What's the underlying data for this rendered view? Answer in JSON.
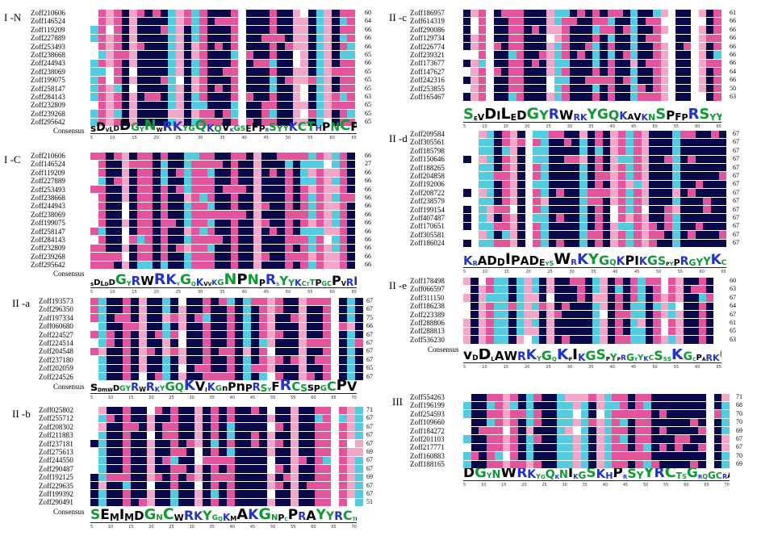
{
  "colors": {
    "identical": "#0a0a4a",
    "high": "#e2559a",
    "medium": "#55cbe0",
    "low": "#f2a7c9",
    "logo_blue": "#2233cc",
    "logo_green": "#119933",
    "logo_black": "#000000"
  },
  "consensus_label": "Consensus",
  "blocks": [
    {
      "id": "I-N",
      "label": "I -N",
      "seqs": [
        "Zoff210606",
        "Zoff146524",
        "Zoff119209",
        "Zoff227889",
        "Zoff253493",
        "Zoff238668",
        "Zoff244943",
        "Zoff238069",
        "Zoff199075",
        "Zoff258147",
        "Zoff284143",
        "Zoff232809",
        "Zoff239268",
        "Zoff295642"
      ],
      "lengths": [
        "60",
        "64",
        "66",
        "66",
        "66",
        "65",
        "66",
        "65",
        "65",
        "65",
        "63",
        "65",
        "65",
        "65"
      ],
      "logo_text": "sDVLDDGYNWRKYGQKQVKGSEFPRSYYKCTHPNCPVKKKVERSLDGQITEIVYKG HNHPKP",
      "ticks": [
        "5",
        "10",
        "15",
        "20",
        "25",
        "30",
        "35",
        "40",
        "45",
        "50",
        "55",
        "60",
        "65"
      ]
    },
    {
      "id": "I-C",
      "label": "I -C",
      "seqs": [
        "Zoff210606",
        "Zoff146524",
        "Zoff119209",
        "Zoff227889",
        "Zoff253493",
        "Zoff238668",
        "Zoff244943",
        "Zoff238069",
        "Zoff199075",
        "Zoff258147",
        "Zoff284143",
        "Zoff232809",
        "Zoff239268",
        "Zoff295642"
      ],
      "lengths": [
        "66",
        "27",
        "66",
        "66",
        "66",
        "66",
        "66",
        "66",
        "66",
        "66",
        "66",
        "66",
        "66",
        "66"
      ],
      "logo_text": "sDLDDGYRWRKYGQKVVKGNPNPRSYYKCTTPGCPVRKHVERASHDPKSVITTYEGKHNHDVP",
      "ticks": [
        "5",
        "10",
        "15",
        "20",
        "25",
        "30",
        "35",
        "40",
        "45",
        "50",
        "55",
        "60",
        "65"
      ]
    },
    {
      "id": "II-a",
      "label": "II -a",
      "seqs": [
        "Zoff193573",
        "Zoff296350",
        "Zoff197334",
        "Zoff060680",
        "Zoff224527",
        "Zoff224514",
        "Zoff204548",
        "Zoff237180",
        "Zoff202059",
        "Zoff224526"
      ],
      "lengths": [
        "67",
        "67",
        "75",
        "66",
        "67",
        "67",
        "67",
        "67",
        "65",
        "67"
      ],
      "logo_text": "sDmWDGYRWRKYGQKVIKGnPnPRSYFRCSsPGCPVKKKVQRSaeDPSVVVTTYEGEHNHPKP",
      "ticks": [
        "5",
        "10",
        "15",
        "20",
        "25",
        "30",
        "35",
        "40",
        "45",
        "50",
        "55",
        "60",
        "65",
        "70"
      ]
    },
    {
      "id": "II-b",
      "label": "II -b",
      "seqs": [
        "Zoff025802",
        "Zoff255712",
        "Zoff208302",
        "Zoff211883",
        "Zoff237181",
        "Zoff275613",
        "Zoff244550",
        "Zoff290487",
        "Zoff192125",
        "Zoff229635",
        "Zoff199392",
        "Zoff290491"
      ],
      "lengths": [
        "71",
        "67",
        "67",
        "67",
        "67",
        "69",
        "67",
        "67",
        "69",
        "67",
        "67",
        "51"
      ],
      "logo_text": "SEMIMDGNCWRKYGQKMAKGNPCPRAYYRCTMAGCPVRKQVQRCAEDRSVLITTYEGTHNHPLP",
      "ticks": [
        "5",
        "10",
        "15",
        "20",
        "25",
        "30",
        "35",
        "40",
        "45",
        "50",
        "55",
        "60",
        "65",
        "70"
      ]
    },
    {
      "id": "II-c",
      "label": "II -c",
      "seqs": [
        "Zoff186957",
        "Zoff614319",
        "Zoff290086",
        "Zoff129734",
        "Zoff226774",
        "Zoff239321",
        "Zoff173677",
        "Zoff147627",
        "Zoff242316",
        "Zoff253855",
        "Zoff165467"
      ],
      "lengths": [
        "61",
        "66",
        "66",
        "66",
        "66",
        "66",
        "66",
        "64",
        "66",
        "50",
        "63"
      ],
      "logo_text": "SEVDILEDGYRWRKYGQKAVKNSPFPRSYYRCTsrGCPVKKRVERSSDDPSIVITTYEGHHNHS",
      "ticks": [
        "5",
        "10",
        "15",
        "20",
        "25",
        "30",
        "35",
        "40",
        "45",
        "50",
        "55",
        "60",
        "65"
      ]
    },
    {
      "id": "II-d",
      "label": "II -d",
      "seqs": [
        "Zoff209584",
        "Zoff305561",
        "Zoff185798",
        "Zoff150646",
        "Zoff188265",
        "Zoff204858",
        "Zoff192006",
        "Zoff208722",
        "Zoff238579",
        "Zoff199154",
        "Zoff407487",
        "Zoff170651",
        "Zoff305581",
        "Zoff186024"
      ],
      "lengths": [
        "67",
        "67",
        "67",
        "67",
        "67",
        "67",
        "67",
        "67",
        "67",
        "67",
        "67",
        "67",
        "67",
        "67"
      ],
      "logo_text": "KRADDIPADEYSWRKYGQKPIKGSPYPRGYYKCSsvRGCPARKHVERAPDDPSMLIVTYEGEHNH",
      "ticks": [
        "5",
        "10",
        "15",
        "20",
        "25",
        "30",
        "35",
        "40",
        "45",
        "50",
        "55",
        "60",
        "65"
      ]
    },
    {
      "id": "II-e",
      "label": "II -e",
      "seqs": [
        "Zoff178498",
        "Zoff066597",
        "Zoff311150",
        "Zoff186238",
        "Zoff223389",
        "Zoff288806",
        "Zoff288813",
        "Zoff536230"
      ],
      "lengths": [
        "60",
        "63",
        "67",
        "64",
        "67",
        "61",
        "65",
        "63"
      ],
      "logo_text": "vDDLAWRKYGQKPIKGSPYPRGYYKCSSSKGCPARKQVERSRADPSMLIVTYEGEHNHPRP",
      "ticks": [
        "5",
        "10",
        "15",
        "20",
        "25",
        "30",
        "35",
        "40",
        "45",
        "50",
        "55",
        "60",
        "65"
      ]
    },
    {
      "id": "III",
      "label": "III",
      "seqs": [
        "Zoff554263",
        "Zoff196199",
        "Zoff254593",
        "Zoff109660",
        "Zoff184272",
        "Zoff201103",
        "Zoff217771",
        "Zoff160883",
        "Zoff188165"
      ],
      "lengths": [
        "71",
        "68",
        "70",
        "70",
        "69",
        "67",
        "67",
        "70",
        "69"
      ],
      "logo_text": "DGYNWRKYGQKNIKGSKHPRSYYRCTSGRQGCRARKQVQHSNSDPSLAEYTYEGTHTCHS",
      "ticks": [
        "5",
        "10",
        "15",
        "20",
        "25",
        "30",
        "35",
        "40",
        "45",
        "50",
        "55",
        "60",
        "65",
        "70"
      ]
    }
  ]
}
